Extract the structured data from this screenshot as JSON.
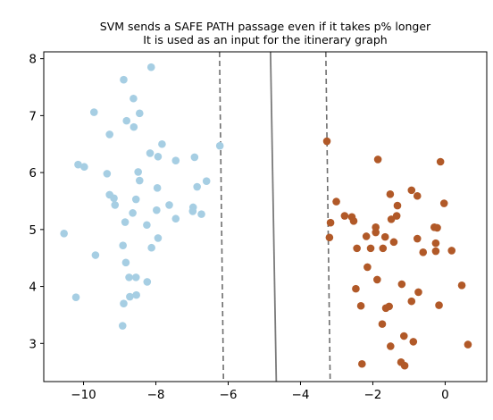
{
  "chart_data": {
    "type": "scatter",
    "title": "SVM sends a SAFE PATH passage even if it takes p% longer",
    "subtitle": "It is used as an input for the itinerary graph",
    "xlabel": "",
    "ylabel": "",
    "xlim": [
      -11.1,
      1.15
    ],
    "ylim": [
      2.33,
      8.12
    ],
    "grid": false,
    "x_ticks": [
      -10,
      -8,
      -6,
      -4,
      -2,
      0
    ],
    "x_tick_labels": [
      "−10",
      "−8",
      "−6",
      "−4",
      "−2",
      "0"
    ],
    "y_ticks": [
      3,
      4,
      5,
      6,
      7,
      8
    ],
    "y_tick_labels": [
      "3",
      "4",
      "5",
      "6",
      "7",
      "8"
    ],
    "series": [
      {
        "color": "#a6cee3",
        "points": [
          [
            -8.13,
            7.85
          ],
          [
            -8.89,
            7.63
          ],
          [
            -8.62,
            7.3
          ],
          [
            -9.71,
            7.06
          ],
          [
            -8.45,
            7.04
          ],
          [
            -8.81,
            6.91
          ],
          [
            -8.61,
            6.8
          ],
          [
            -9.28,
            6.67
          ],
          [
            -7.83,
            6.5
          ],
          [
            -6.23,
            6.47
          ],
          [
            -8.16,
            6.34
          ],
          [
            -7.94,
            6.28
          ],
          [
            -7.45,
            6.21
          ],
          [
            -6.93,
            6.27
          ],
          [
            -10.15,
            6.14
          ],
          [
            -9.98,
            6.1
          ],
          [
            -8.49,
            6.01
          ],
          [
            -9.35,
            5.98
          ],
          [
            -8.45,
            5.86
          ],
          [
            -6.6,
            5.85
          ],
          [
            -6.86,
            5.75
          ],
          [
            -7.96,
            5.73
          ],
          [
            -9.28,
            5.61
          ],
          [
            -9.16,
            5.55
          ],
          [
            -8.55,
            5.53
          ],
          [
            -9.13,
            5.43
          ],
          [
            -7.63,
            5.43
          ],
          [
            -7.98,
            5.34
          ],
          [
            -6.97,
            5.39
          ],
          [
            -6.98,
            5.32
          ],
          [
            -6.74,
            5.27
          ],
          [
            -8.64,
            5.29
          ],
          [
            -7.45,
            5.19
          ],
          [
            -8.85,
            5.13
          ],
          [
            -8.25,
            5.08
          ],
          [
            -10.54,
            4.93
          ],
          [
            -7.94,
            4.85
          ],
          [
            -8.12,
            4.68
          ],
          [
            -8.91,
            4.72
          ],
          [
            -9.67,
            4.55
          ],
          [
            -8.83,
            4.42
          ],
          [
            -8.74,
            4.16
          ],
          [
            -8.55,
            4.16
          ],
          [
            -8.24,
            4.08
          ],
          [
            -8.54,
            3.85
          ],
          [
            -8.72,
            3.82
          ],
          [
            -10.21,
            3.81
          ],
          [
            -8.89,
            3.7
          ],
          [
            -8.92,
            3.31
          ]
        ]
      },
      {
        "color": "#b15928",
        "points": [
          [
            -3.27,
            6.55
          ],
          [
            -1.86,
            6.23
          ],
          [
            -0.13,
            6.19
          ],
          [
            -0.93,
            5.69
          ],
          [
            -3.01,
            5.49
          ],
          [
            -1.52,
            5.62
          ],
          [
            -0.77,
            5.59
          ],
          [
            -1.32,
            5.42
          ],
          [
            -0.03,
            5.46
          ],
          [
            -2.78,
            5.24
          ],
          [
            -2.58,
            5.22
          ],
          [
            -2.53,
            5.15
          ],
          [
            -1.34,
            5.24
          ],
          [
            -1.49,
            5.18
          ],
          [
            -3.17,
            5.12
          ],
          [
            -1.92,
            5.04
          ],
          [
            -0.3,
            5.04
          ],
          [
            -0.22,
            5.03
          ],
          [
            -1.92,
            4.95
          ],
          [
            -2.18,
            4.88
          ],
          [
            -1.66,
            4.87
          ],
          [
            -3.2,
            4.86
          ],
          [
            -0.77,
            4.84
          ],
          [
            -0.26,
            4.76
          ],
          [
            -1.42,
            4.78
          ],
          [
            -2.44,
            4.67
          ],
          [
            -2.06,
            4.67
          ],
          [
            -1.72,
            4.67
          ],
          [
            -0.61,
            4.6
          ],
          [
            -0.26,
            4.62
          ],
          [
            0.18,
            4.63
          ],
          [
            -2.15,
            4.34
          ],
          [
            -1.88,
            4.12
          ],
          [
            -1.2,
            4.04
          ],
          [
            0.46,
            4.02
          ],
          [
            -2.47,
            3.96
          ],
          [
            -0.74,
            3.9
          ],
          [
            -1.55,
            3.65
          ],
          [
            -1.64,
            3.62
          ],
          [
            -2.33,
            3.66
          ],
          [
            -0.93,
            3.74
          ],
          [
            -0.17,
            3.67
          ],
          [
            -1.74,
            3.34
          ],
          [
            -1.14,
            3.13
          ],
          [
            -0.88,
            3.03
          ],
          [
            -1.51,
            2.95
          ],
          [
            0.63,
            2.98
          ],
          [
            -2.3,
            2.64
          ],
          [
            -1.22,
            2.67
          ],
          [
            -1.12,
            2.61
          ]
        ]
      }
    ],
    "decision_boundary": {
      "x_at_top": -4.83,
      "x_at_bottom": -4.67
    },
    "margins": [
      {
        "x_at_top": -6.24,
        "x_at_bottom": -6.13
      },
      {
        "x_at_top": -3.3,
        "x_at_bottom": -3.18
      }
    ],
    "line_colors": {
      "boundary": "#7a7a7a",
      "margin": "#6e6e6e"
    }
  }
}
